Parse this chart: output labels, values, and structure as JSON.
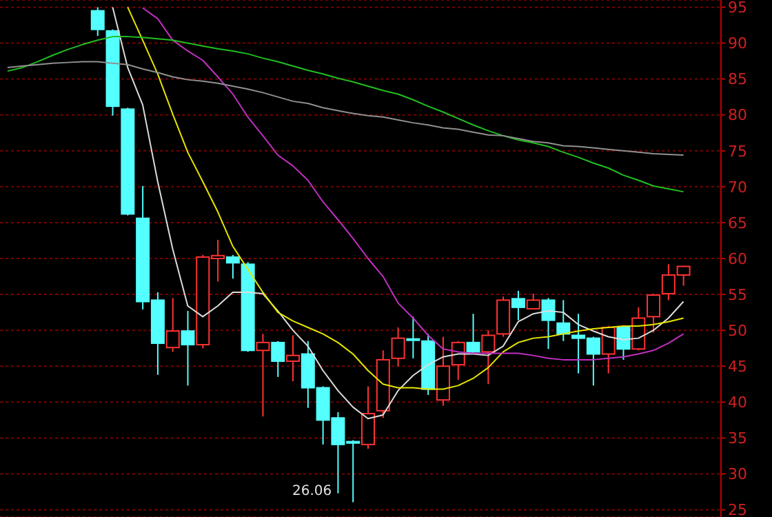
{
  "chart_data": {
    "type": "candlestick",
    "categories": [
      null,
      null,
      null,
      null,
      null,
      null,
      null,
      null,
      null,
      null,
      null,
      null,
      null,
      null,
      null,
      null,
      null,
      null,
      null,
      null,
      null,
      null,
      null,
      null,
      null,
      null,
      null,
      null,
      null,
      null,
      null,
      null,
      null,
      null,
      null,
      null,
      null,
      null,
      null,
      null,
      null,
      null,
      null,
      null,
      null,
      null
    ],
    "ylim": [
      24,
      96
    ],
    "yticks": [
      25,
      30,
      35,
      40,
      45,
      50,
      55,
      60,
      65,
      70,
      75,
      80,
      85,
      90,
      95
    ],
    "grid": "y",
    "tick_labels": "y",
    "annotations": [
      "26.06"
    ],
    "series": [
      {
        "ohlc": [
          null,
          null,
          null,
          null,
          null,
          null,
          [
            94.5,
            95,
            91,
            91.9
          ],
          [
            91.7,
            91.9,
            79.9,
            81.2
          ],
          [
            80.8,
            81,
            66,
            66.2
          ],
          [
            65.6,
            70.1,
            52.9,
            54.0
          ],
          [
            54.2,
            55.3,
            43.8,
            48.2
          ],
          [
            47.6,
            54.5,
            47.0,
            49.9
          ],
          [
            49.9,
            52.7,
            42.3,
            48.0
          ],
          [
            48.0,
            60.5,
            47.5,
            60.2
          ],
          [
            60.0,
            62.6,
            56.8,
            60.4
          ],
          [
            60.2,
            60.5,
            57.2,
            59.4
          ],
          [
            59.2,
            59.5,
            47.0,
            47.2
          ],
          [
            47.2,
            49.5,
            38.0,
            48.3
          ],
          [
            48.3,
            48.5,
            43.5,
            45.7
          ],
          [
            45.7,
            49.3,
            42.9,
            46.5
          ],
          [
            46.7,
            48.5,
            39.2,
            42.0
          ],
          [
            42.0,
            42.2,
            34.1,
            37.5
          ],
          [
            37.8,
            38.6,
            27.3,
            34.1
          ],
          [
            34.3,
            34.7,
            26.06,
            34.5
          ],
          [
            34.1,
            42.2,
            33.5,
            38.4
          ],
          [
            38.8,
            47.2,
            37.8,
            45.9
          ],
          [
            46.1,
            50.4,
            45.0,
            48.9
          ],
          [
            48.8,
            51.9,
            46.1,
            48.7
          ],
          [
            48.5,
            49.5,
            41.0,
            41.8
          ],
          [
            40.3,
            49.1,
            39.5,
            45.0
          ],
          [
            45.2,
            48.5,
            43.1,
            48.3
          ],
          [
            48.3,
            52.3,
            46.8,
            47.0
          ],
          [
            47.0,
            50.0,
            42.5,
            49.3
          ],
          [
            49.5,
            54.7,
            49.1,
            54.2
          ],
          [
            54.4,
            55.5,
            51.4,
            53.2
          ],
          [
            53.0,
            55.1,
            52.9,
            54.2
          ],
          [
            54.2,
            54.5,
            47.4,
            51.4
          ],
          [
            51.0,
            54.2,
            48.5,
            49.5
          ],
          [
            49.3,
            52.3,
            44.0,
            48.9
          ],
          [
            48.9,
            49.1,
            42.3,
            46.7
          ],
          [
            46.7,
            50.6,
            44.0,
            50.4
          ],
          [
            50.4,
            50.6,
            45.9,
            47.4
          ],
          [
            47.4,
            53.2,
            47.2,
            51.7
          ],
          [
            51.9,
            55.1,
            49.7,
            54.9
          ],
          [
            55.1,
            59.2,
            54.2,
            57.7
          ],
          [
            57.7,
            59.0,
            56.2,
            58.9
          ]
        ],
        "colors": [
          null,
          null,
          null,
          null,
          null,
          null,
          "#54ffff",
          "#54ffff",
          "#54ffff",
          "#54ffff",
          "#54ffff",
          "#ff3232",
          "#54ffff",
          "#ff3232",
          "#ff3232",
          "#54ffff",
          "#54ffff",
          "#ff3232",
          "#54ffff",
          "#ff3232",
          "#54ffff",
          "#54ffff",
          "#54ffff",
          "#54ffff",
          "#ff3232",
          "#ff3232",
          "#ff3232",
          "#54ffff",
          "#54ffff",
          "#ff3232",
          "#ff3232",
          "#54ffff",
          "#ff3232",
          "#ff3232",
          "#54ffff",
          "#ff3232",
          "#54ffff",
          "#54ffff",
          "#54ffff",
          "#54ffff",
          "#ff3232",
          "#54ffff",
          "#ff3232",
          "#ff3232",
          "#ff3232",
          "#ff3232"
        ]
      },
      {
        "type": "line",
        "color": "#dcdcdc",
        "values": [
          null,
          null,
          null,
          null,
          null,
          null,
          null,
          95,
          86.6,
          81.4,
          70.7,
          61.3,
          53.4,
          51.9,
          53.4,
          55.3,
          55.3,
          55.1,
          52.7,
          50.0,
          47.8,
          44.4,
          41.6,
          39.3,
          37.7,
          38.2,
          41.6,
          43.7,
          45.2,
          46.3,
          46.7,
          46.7,
          46.5,
          47.8,
          51.2,
          52.3,
          52.7,
          52.5,
          50.8,
          49.9,
          49.1,
          48.7,
          48.9,
          50.0,
          51.7,
          54.0
        ]
      },
      {
        "type": "line",
        "color": "#e6e600",
        "values": [
          null,
          null,
          null,
          null,
          null,
          null,
          null,
          null,
          95,
          90.4,
          85.7,
          80.1,
          74.8,
          70.7,
          66.5,
          61.7,
          58.5,
          55.3,
          52.5,
          51.3,
          50.4,
          49.5,
          48.3,
          46.7,
          44.4,
          42.5,
          42.0,
          42.0,
          41.8,
          41.8,
          42.3,
          43.3,
          44.8,
          47.0,
          48.3,
          48.9,
          49.1,
          49.5,
          49.9,
          50.2,
          50.4,
          50.6,
          50.6,
          50.8,
          51.2,
          51.7
        ]
      },
      {
        "type": "line",
        "color": "#c030c0",
        "values": [
          null,
          null,
          null,
          null,
          null,
          null,
          null,
          null,
          null,
          94.9,
          93.4,
          90.4,
          88.9,
          87.6,
          85.3,
          82.9,
          79.7,
          77.1,
          74.4,
          72.9,
          70.9,
          67.9,
          65.4,
          62.8,
          60.0,
          57.5,
          53.8,
          51.7,
          49.3,
          47.4,
          47.0,
          46.8,
          46.8,
          46.8,
          46.8,
          46.5,
          46.1,
          45.9,
          45.9,
          45.9,
          46.1,
          46.3,
          46.7,
          47.2,
          48.2,
          49.5
        ]
      },
      {
        "type": "line",
        "color": "#20c020",
        "values": [
          86.1,
          86.6,
          87.4,
          88.3,
          89.1,
          89.8,
          90.4,
          90.9,
          90.9,
          90.8,
          90.6,
          90.4,
          90.0,
          89.6,
          89.2,
          88.9,
          88.5,
          87.9,
          87.4,
          86.8,
          86.2,
          85.7,
          85.1,
          84.6,
          84.0,
          83.4,
          82.9,
          82.1,
          81.2,
          80.4,
          79.5,
          78.6,
          77.8,
          77.1,
          76.5,
          76.1,
          75.6,
          74.8,
          74.1,
          73.3,
          72.6,
          71.6,
          70.9,
          70.1,
          69.7,
          69.3
        ]
      },
      {
        "type": "line",
        "color": "#909090",
        "values": [
          86.6,
          86.8,
          87.0,
          87.2,
          87.3,
          87.4,
          87.4,
          87.2,
          87.0,
          86.4,
          85.9,
          85.3,
          84.9,
          84.7,
          84.4,
          84.0,
          83.6,
          83.1,
          82.5,
          81.9,
          81.6,
          81.0,
          80.6,
          80.2,
          79.9,
          79.7,
          79.3,
          78.9,
          78.6,
          78.2,
          78.0,
          77.6,
          77.2,
          77.1,
          76.7,
          76.3,
          76.1,
          75.7,
          75.6,
          75.4,
          75.2,
          75.0,
          74.8,
          74.6,
          74.5,
          74.4
        ]
      }
    ]
  }
}
